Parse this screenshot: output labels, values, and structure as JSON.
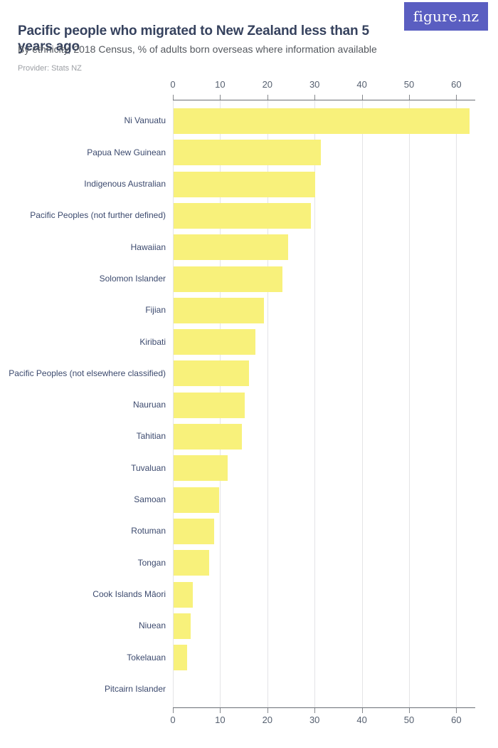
{
  "header": {
    "title": "Pacific people who migrated to New Zealand less than 5 years ago",
    "subtitle": "By ethnicity, 2018 Census, % of adults born overseas where information available",
    "provider": "Provider: Stats NZ",
    "logo_text": "figure.nz"
  },
  "colors": {
    "bar": "#F8F17B",
    "title_text": "#36425E",
    "subtitle_text": "#54585E",
    "provider_text": "#9C9FA4",
    "row_label_text": "#3C4A6E",
    "tick_label_text": "#566070",
    "axis_line": "#6B6F75",
    "gridline": "#E4E4E6",
    "logo_background": "#5A5EC1",
    "logo_text_color": "#FFFFFF"
  },
  "chart_data": {
    "type": "bar",
    "orientation": "horizontal",
    "title": "Pacific people who migrated to New Zealand less than 5 years ago",
    "subtitle": "By ethnicity, 2018 Census, % of adults born overseas where information available",
    "provider": "Provider: Stats NZ",
    "categories": [
      "Ni Vanuatu",
      "Papua New Guinean",
      "Indigenous Australian",
      "Pacific Peoples (not further defined)",
      "Hawaiian",
      "Solomon Islander",
      "Fijian",
      "Kiribati",
      "Pacific Peoples (not elsewhere classified)",
      "Nauruan",
      "Tahitian",
      "Tuvaluan",
      "Samoan",
      "Rotuman",
      "Tongan",
      "Cook Islands Māori",
      "Niuean",
      "Tokelauan",
      "Pitcairn Islander"
    ],
    "values": [
      62.7,
      31.1,
      29.9,
      29.0,
      24.3,
      23.1,
      19.1,
      17.3,
      15.9,
      15.1,
      14.4,
      11.4,
      9.7,
      8.6,
      7.6,
      4.1,
      3.6,
      2.8,
      0
    ],
    "unit": "%",
    "xlabel": "",
    "ylabel": "",
    "xlim": [
      0,
      64
    ],
    "x_ticks": [
      0,
      10,
      20,
      30,
      40,
      50,
      60
    ],
    "grid": true,
    "legend": false,
    "bar_color": "#F8F17B"
  }
}
